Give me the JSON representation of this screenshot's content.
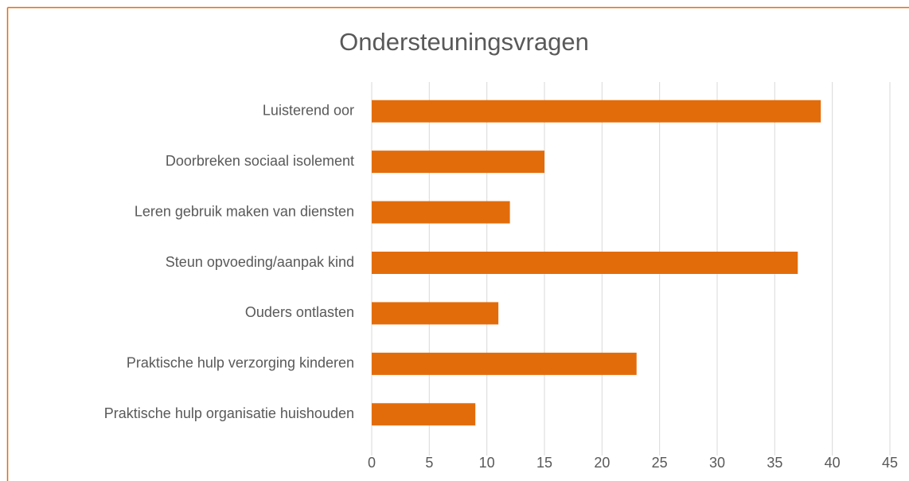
{
  "chart_data": {
    "type": "bar",
    "orientation": "horizontal",
    "title": "Ondersteuningsvragen",
    "categories": [
      "Luisterend oor",
      "Doorbreken sociaal isolement",
      "Leren gebruik maken van diensten",
      "Steun opvoeding/aanpak kind",
      "Ouders ontlasten",
      "Praktische hulp verzorging kinderen",
      "Praktische hulp organisatie huishouden"
    ],
    "values": [
      39,
      15,
      12,
      37,
      11,
      23,
      9
    ],
    "color": "#e36c0a",
    "xlim": [
      0,
      45
    ],
    "xticks": [
      0,
      5,
      10,
      15,
      20,
      25,
      30,
      35,
      40,
      45
    ],
    "grid": true
  }
}
